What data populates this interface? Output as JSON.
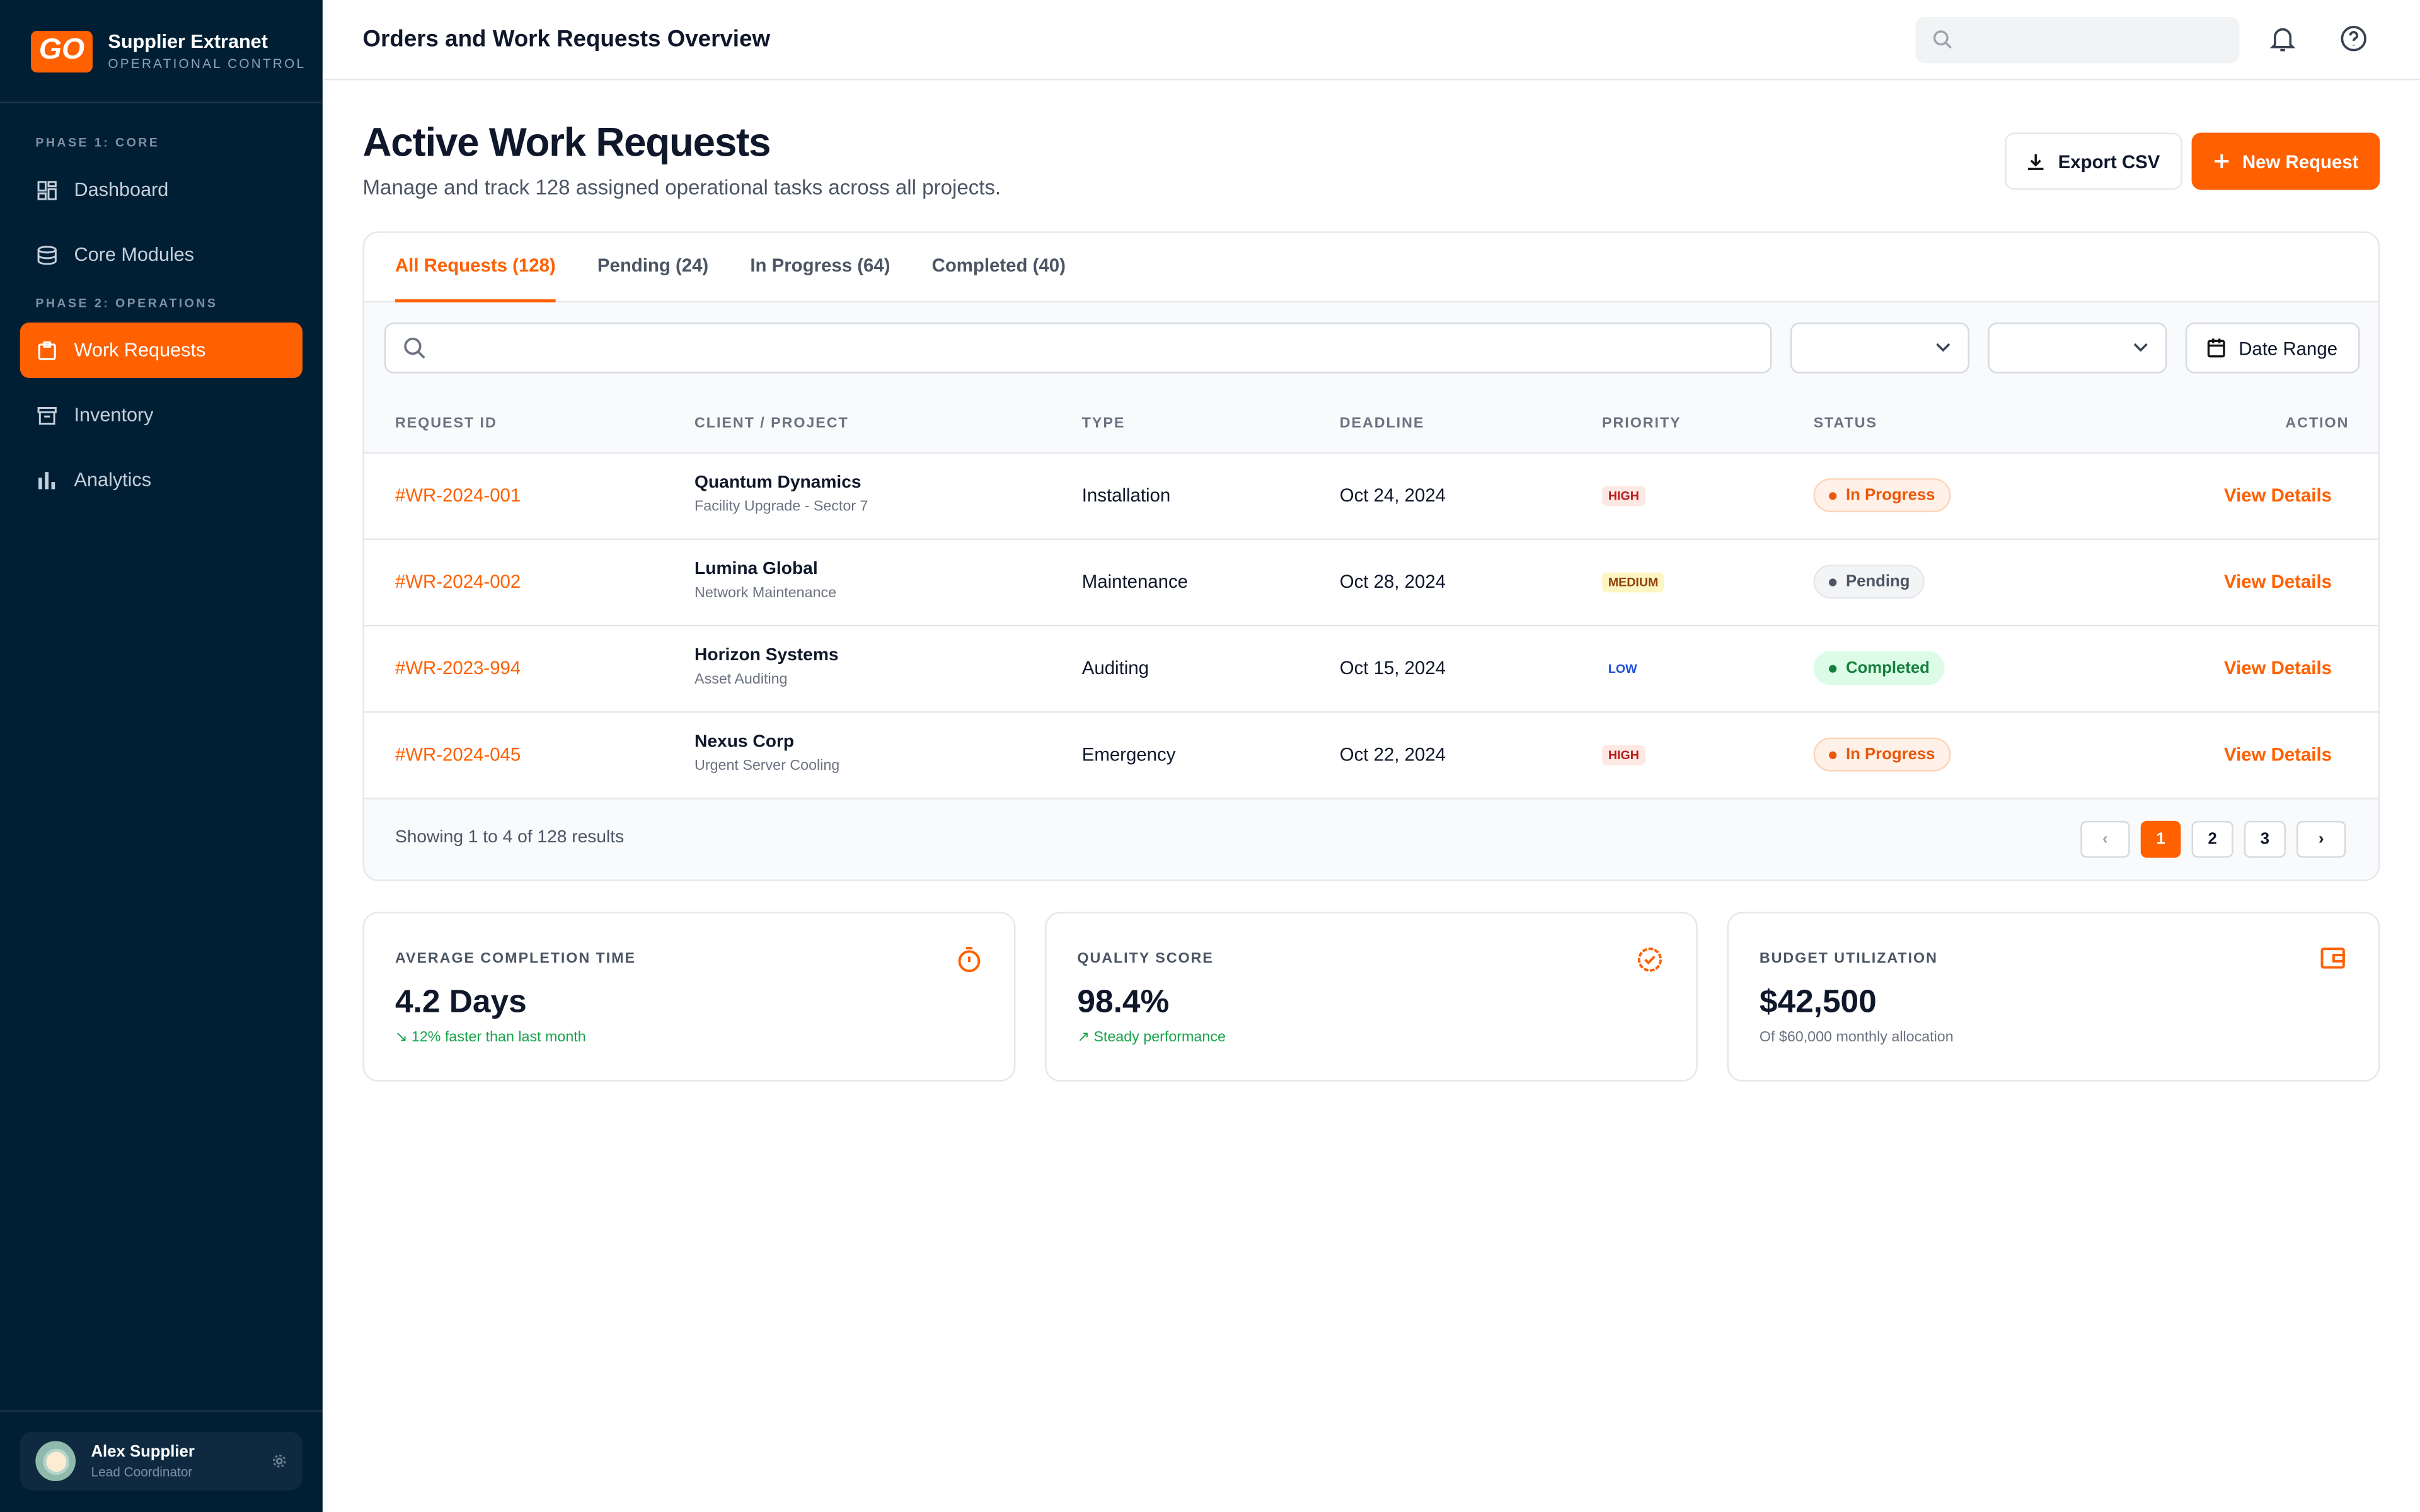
{
  "brand": {
    "logo": "GO",
    "title": "Supplier Extranet",
    "subtitle": "OPERATIONAL CONTROL"
  },
  "sidebar": {
    "phase1": "PHASE 1: CORE",
    "phase2": "PHASE 2: OPERATIONS",
    "items": [
      {
        "label": "Dashboard",
        "icon": "dashboard-icon"
      },
      {
        "label": "Core Modules",
        "icon": "database-icon"
      },
      {
        "label": "Work Requests",
        "icon": "clipboard-icon",
        "active": true
      },
      {
        "label": "Inventory",
        "icon": "archive-icon"
      },
      {
        "label": "Analytics",
        "icon": "bar-chart-icon"
      }
    ]
  },
  "user": {
    "name": "Alex Supplier",
    "role": "Lead Coordinator"
  },
  "header": {
    "title": "Orders and Work Requests Overview",
    "search_placeholder": ""
  },
  "page": {
    "title": "Active Work Requests",
    "subtitle": "Manage and track 128 assigned operational tasks across all projects.",
    "export_label": "Export CSV",
    "new_label": "New Request"
  },
  "tabs": [
    {
      "label": "All Requests (128)",
      "active": true
    },
    {
      "label": "Pending (24)"
    },
    {
      "label": "In Progress (64)"
    },
    {
      "label": "Completed (40)"
    }
  ],
  "filters": {
    "search_placeholder": "",
    "select1": "",
    "select2": "",
    "date_range": "Date Range"
  },
  "table": {
    "headers": [
      "REQUEST ID",
      "CLIENT / PROJECT",
      "TYPE",
      "DEADLINE",
      "PRIORITY",
      "STATUS",
      "ACTION"
    ],
    "rows": [
      {
        "id": "#WR-2024-001",
        "client": "Quantum Dynamics",
        "project": "Facility Upgrade - Sector 7",
        "type": "Installation",
        "deadline": "Oct 24, 2024",
        "priority": "HIGH",
        "status": "In Progress",
        "action": "View Details"
      },
      {
        "id": "#WR-2024-002",
        "client": "Lumina Global",
        "project": "Network Maintenance",
        "type": "Maintenance",
        "deadline": "Oct 28, 2024",
        "priority": "MEDIUM",
        "status": "Pending",
        "action": "View Details"
      },
      {
        "id": "#WR-2023-994",
        "client": "Horizon Systems",
        "project": "Asset Auditing",
        "type": "Auditing",
        "deadline": "Oct 15, 2024",
        "priority": "LOW",
        "status": "Completed",
        "action": "View Details"
      },
      {
        "id": "#WR-2024-045",
        "client": "Nexus Corp",
        "project": "Urgent Server Cooling",
        "type": "Emergency",
        "deadline": "Oct 22, 2024",
        "priority": "HIGH",
        "status": "In Progress",
        "action": "View Details"
      }
    ]
  },
  "pagination": {
    "summary": "Showing 1 to 4 of 128 results",
    "pages": [
      "1",
      "2",
      "3"
    ],
    "current": "1",
    "prev": "‹",
    "next": "›"
  },
  "stats": [
    {
      "label": "AVERAGE COMPLETION TIME",
      "value": "4.2 Days",
      "sub": "12% faster than last month",
      "icon": "timer-icon"
    },
    {
      "label": "QUALITY SCORE",
      "value": "98.4%",
      "sub": "Steady performance",
      "icon": "badge-check-icon"
    },
    {
      "label": "BUDGET UTILIZATION",
      "value": "$42,500",
      "sub": "Of $60,000 monthly allocation",
      "icon": "wallet-icon"
    }
  ],
  "colors": {
    "accent": "#ff6000",
    "sidebar": "#001f35"
  }
}
